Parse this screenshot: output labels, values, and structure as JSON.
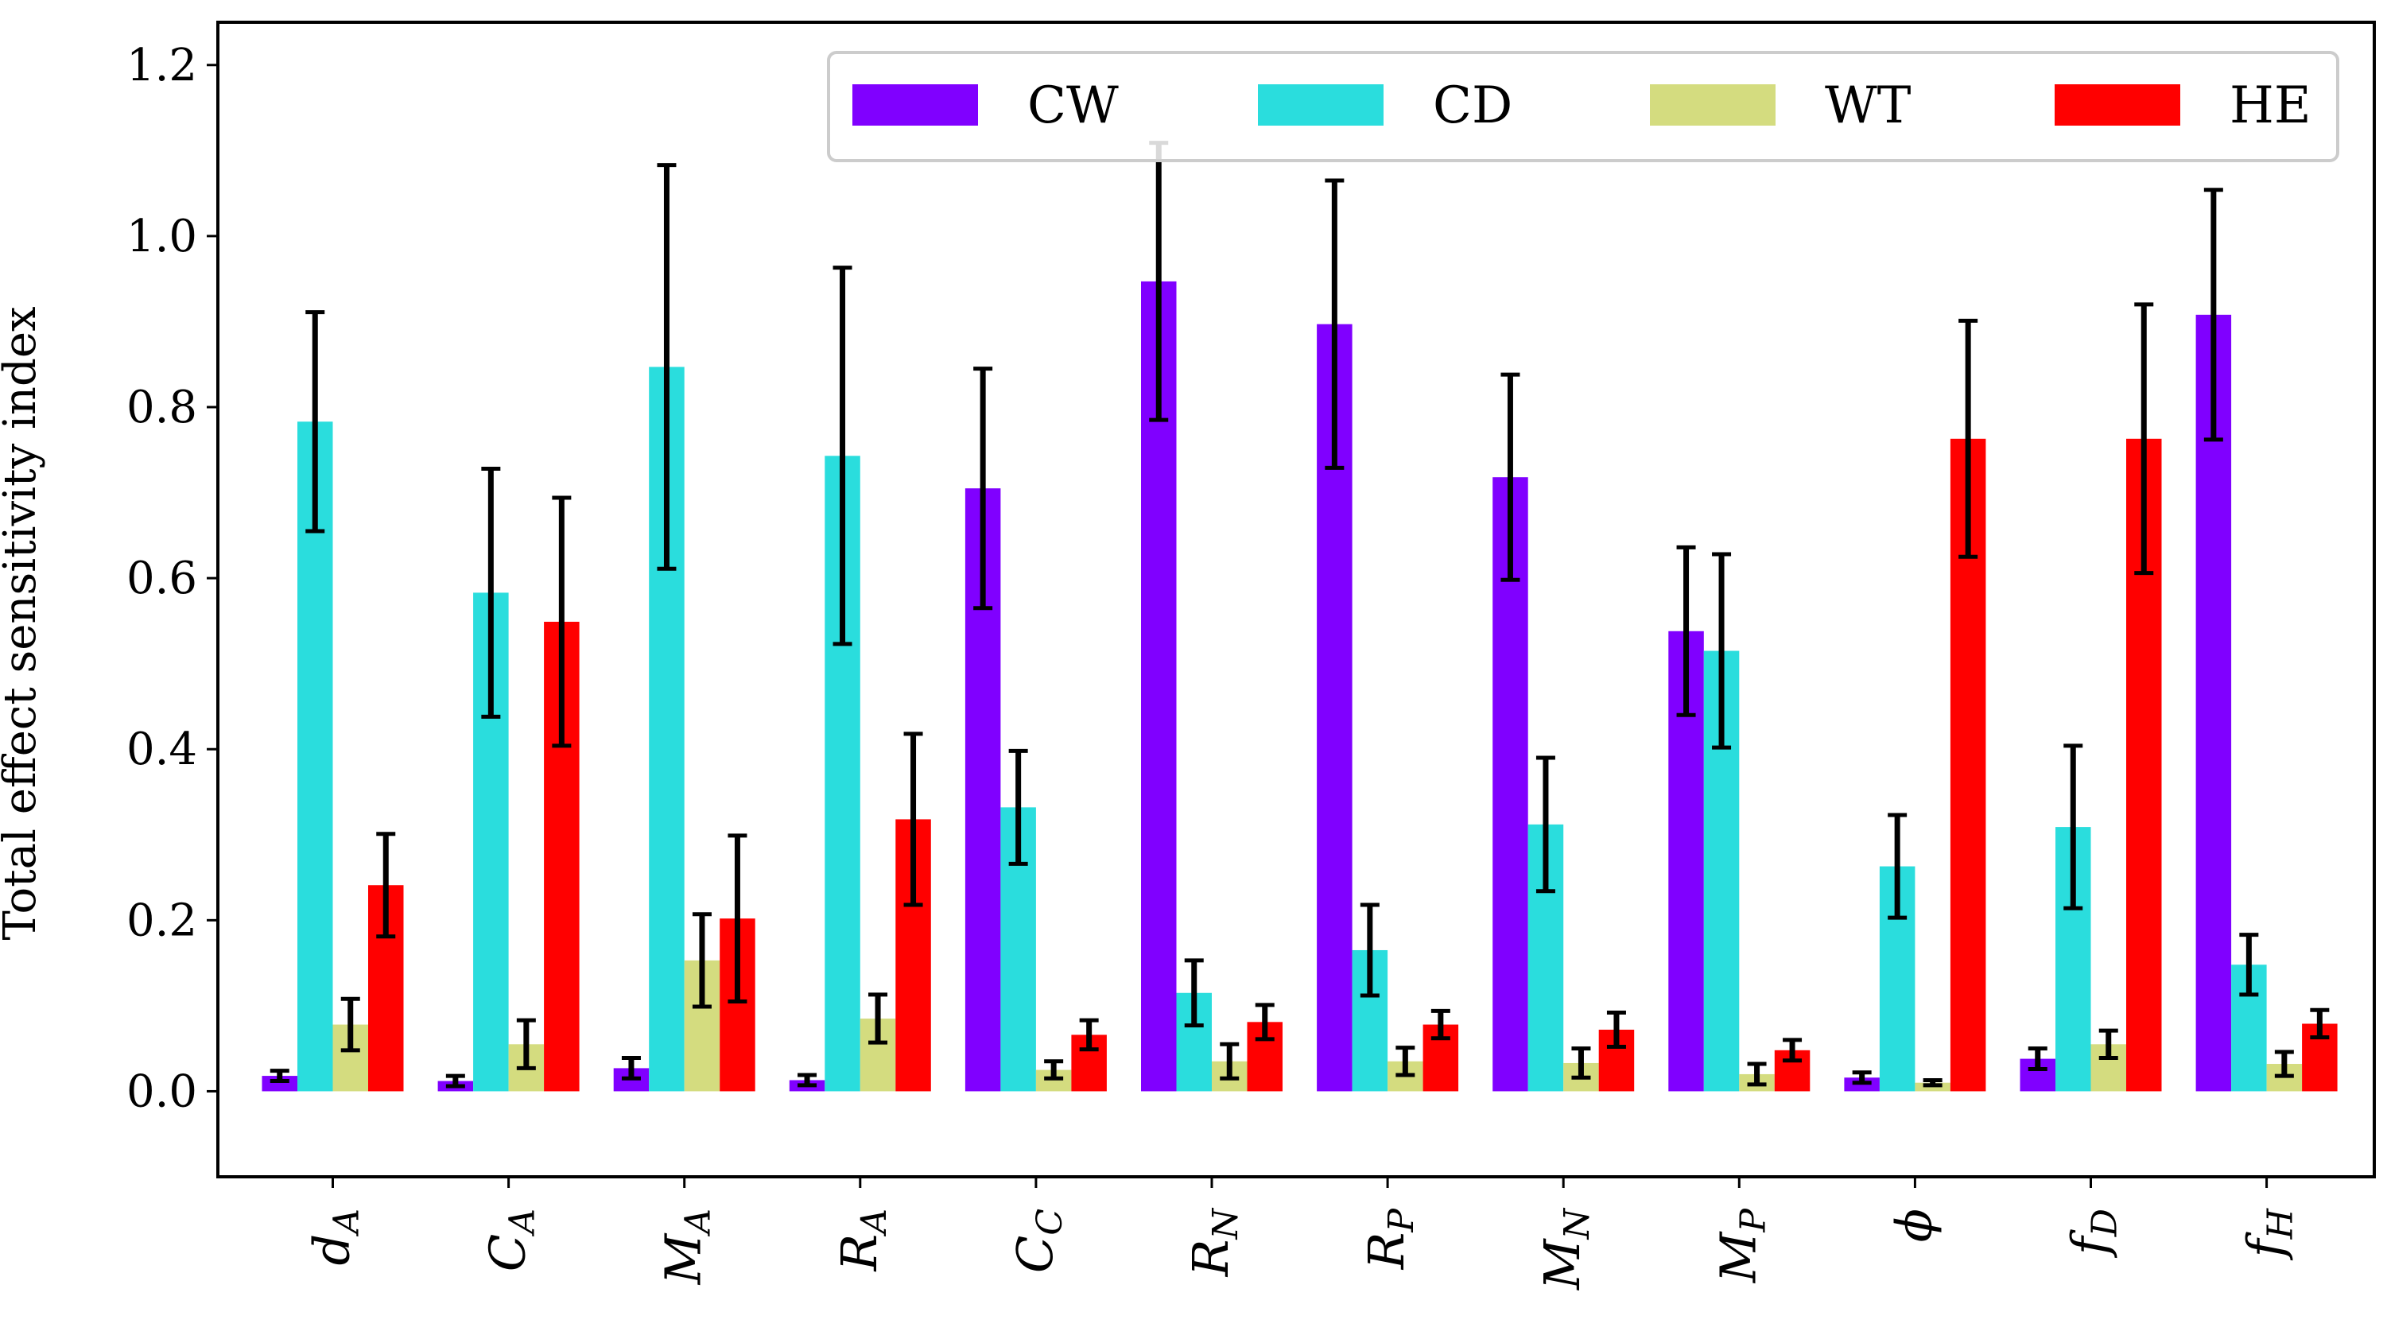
{
  "chart_data": {
    "type": "bar",
    "title": "",
    "xlabel": "",
    "ylabel": "Total effect sensitivity index",
    "ylim": [
      -0.1,
      1.25
    ],
    "yticks": [
      "0.0",
      "0.2",
      "0.4",
      "0.6",
      "0.8",
      "1.0",
      "1.2"
    ],
    "grid": false,
    "legend_position": "top-right",
    "categories": [
      "d_A",
      "C_A",
      "M_A",
      "R_A",
      "C_C",
      "R_N",
      "R_P",
      "M_N",
      "M_P",
      "ϕ",
      "f_D",
      "f_H"
    ],
    "category_display": [
      {
        "base": "d",
        "sub": "A"
      },
      {
        "base": "C",
        "sub": "A"
      },
      {
        "base": "M",
        "sub": "A"
      },
      {
        "base": "R",
        "sub": "A"
      },
      {
        "base": "C",
        "sub": "C"
      },
      {
        "base": "R",
        "sub": "N"
      },
      {
        "base": "R",
        "sub": "P"
      },
      {
        "base": "M",
        "sub": "N"
      },
      {
        "base": "M",
        "sub": "P"
      },
      {
        "base": "ϕ",
        "sub": ""
      },
      {
        "base": "f",
        "sub": "D"
      },
      {
        "base": "f",
        "sub": "H"
      }
    ],
    "series": [
      {
        "name": "CW",
        "color": "#8000ff",
        "values": [
          0.018,
          0.012,
          0.027,
          0.013,
          0.705,
          0.947,
          0.897,
          0.718,
          0.538,
          0.016,
          0.038,
          0.908
        ],
        "errors": [
          0.006,
          0.006,
          0.012,
          0.006,
          0.14,
          0.162,
          0.168,
          0.12,
          0.098,
          0.006,
          0.012,
          0.146
        ]
      },
      {
        "name": "CD",
        "color": "#2adddd",
        "values": [
          0.783,
          0.583,
          0.847,
          0.743,
          0.332,
          0.115,
          0.165,
          0.312,
          0.515,
          0.263,
          0.309,
          0.148
        ],
        "errors": [
          0.128,
          0.145,
          0.236,
          0.22,
          0.066,
          0.038,
          0.053,
          0.078,
          0.113,
          0.06,
          0.095,
          0.035
        ]
      },
      {
        "name": "WT",
        "color": "#d4dc7f",
        "values": [
          0.078,
          0.055,
          0.153,
          0.085,
          0.025,
          0.035,
          0.035,
          0.033,
          0.02,
          0.01,
          0.055,
          0.032
        ],
        "errors": [
          0.03,
          0.028,
          0.054,
          0.028,
          0.01,
          0.02,
          0.016,
          0.017,
          0.012,
          0.003,
          0.016,
          0.014
        ]
      },
      {
        "name": "HE",
        "color": "#ff0000",
        "values": [
          0.241,
          0.549,
          0.202,
          0.318,
          0.066,
          0.081,
          0.078,
          0.072,
          0.048,
          0.763,
          0.763,
          0.079
        ],
        "errors": [
          0.06,
          0.145,
          0.097,
          0.1,
          0.017,
          0.02,
          0.016,
          0.02,
          0.012,
          0.138,
          0.157,
          0.016
        ]
      }
    ]
  }
}
